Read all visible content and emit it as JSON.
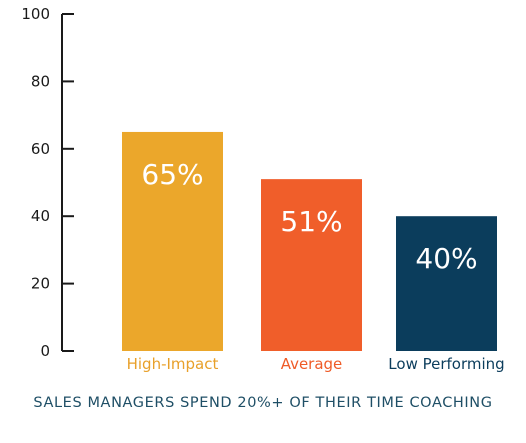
{
  "chart_data": {
    "type": "bar",
    "categories": [
      "High-Impact",
      "Average",
      "Low Performing"
    ],
    "values": [
      65,
      51,
      40
    ],
    "value_labels": [
      "65%",
      "51%",
      "40%"
    ],
    "ylim": [
      0,
      100
    ],
    "yticks": [
      0,
      20,
      40,
      60,
      80,
      100
    ],
    "colors": [
      "#eba72b",
      "#f05e2a",
      "#0b3d5c"
    ],
    "label_colors": [
      "#e8a02a",
      "#ef5b27",
      "#0b3d5c"
    ],
    "grid": false,
    "caption": "SALES MANAGERS SPEND 20%+ OF THEIR TIME COACHING"
  }
}
